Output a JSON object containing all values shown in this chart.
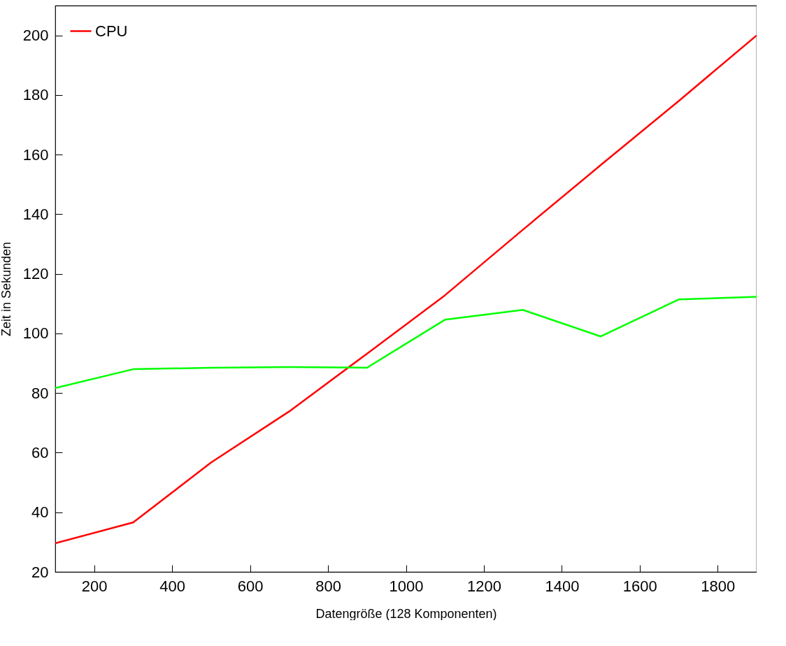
{
  "chart_data": {
    "type": "line",
    "xlabel": "Datengröße (128 Komponenten)",
    "ylabel": "Zeit in Sekunden",
    "x": [
      100,
      300,
      500,
      700,
      900,
      1100,
      1300,
      1500,
      1700,
      1900
    ],
    "series": [
      {
        "name": "CPU",
        "color": "#ff0000",
        "values": [
          29.6,
          36.6,
          56.7,
          73.8,
          93.2,
          112.8,
          134.8,
          156.5,
          178,
          200
        ]
      },
      {
        "color": "#00ff00",
        "values": [
          81.7,
          88,
          88.5,
          88.7,
          88.5,
          104.6,
          107.9,
          99,
          111.4,
          112.3
        ]
      }
    ],
    "xlim": [
      100,
      1900
    ],
    "xticks": [
      200,
      400,
      600,
      800,
      1000,
      1200,
      1400,
      1600,
      1800
    ],
    "ylim": [
      20,
      210
    ],
    "yticks": [
      20,
      40,
      60,
      80,
      100,
      120,
      140,
      160,
      180,
      200
    ],
    "grid": false,
    "legend": "top left",
    "marker": "none",
    "line_style": "solid"
  }
}
